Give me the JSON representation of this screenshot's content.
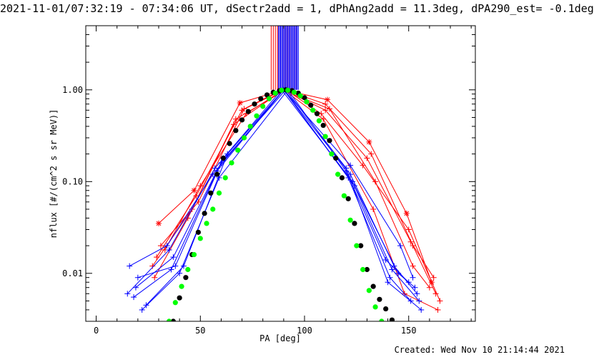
{
  "chart_data": {
    "type": "line",
    "title": "2021-11-01/07:32:19 - 07:34:06 UT, dSectr2add = 1, dPhAng2add = 11.3deg, dPA290_est= -0.1deg",
    "xlabel": "PA [deg]",
    "ylabel": "nflux [#/(cm^2 s sr MeV)]",
    "xlim": [
      -5,
      182
    ],
    "ylim": [
      0.003,
      5
    ],
    "yscale": "log",
    "xticks": [
      0,
      50,
      100,
      150
    ],
    "xtick_labels": [
      "0",
      "50",
      "100",
      "150"
    ],
    "yticks": [
      0.01,
      0.1,
      1.0
    ],
    "ytick_labels": [
      "0.01",
      "0.10",
      "1.00"
    ],
    "grid": false,
    "legend": "none",
    "colors": {
      "red": "#ff0000",
      "blue": "#0000ff",
      "black": "#000000",
      "green": "#00ff00"
    },
    "series": [
      {
        "color": "red",
        "marker": "plus",
        "x": [
          29,
          48,
          70,
          90,
          110,
          132,
          152,
          163
        ],
        "y": [
          0.015,
          0.07,
          0.6,
          1.0,
          0.7,
          0.2,
          0.02,
          0.006
        ]
      },
      {
        "color": "red",
        "marker": "star",
        "x": [
          30,
          47,
          69,
          90,
          111,
          131,
          149,
          161
        ],
        "y": [
          0.035,
          0.08,
          0.72,
          1.0,
          0.78,
          0.27,
          0.045,
          0.008
        ]
      },
      {
        "color": "red",
        "marker": "plus",
        "x": [
          27,
          46,
          67,
          91,
          108,
          128,
          150,
          165
        ],
        "y": [
          0.012,
          0.05,
          0.48,
          1.0,
          0.55,
          0.15,
          0.03,
          0.005
        ]
      },
      {
        "color": "red",
        "marker": "plus",
        "x": [
          31,
          49,
          71,
          89,
          112,
          134,
          152,
          160
        ],
        "y": [
          0.02,
          0.06,
          0.62,
          1.0,
          0.62,
          0.1,
          0.012,
          0.007
        ]
      },
      {
        "color": "red",
        "marker": "plus",
        "x": [
          28,
          44,
          66,
          90,
          109,
          133,
          148,
          164
        ],
        "y": [
          0.009,
          0.04,
          0.42,
          1.0,
          0.48,
          0.05,
          0.006,
          0.004
        ]
      },
      {
        "color": "red",
        "marker": "plus",
        "x": [
          33,
          50,
          72,
          90,
          110,
          130,
          151,
          162
        ],
        "y": [
          0.018,
          0.09,
          0.55,
          1.0,
          0.6,
          0.18,
          0.022,
          0.009
        ]
      },
      {
        "color": "blue",
        "marker": "plus",
        "x": [
          16,
          34,
          56,
          90,
          122,
          143,
          154
        ],
        "y": [
          0.012,
          0.02,
          0.12,
          1.0,
          0.12,
          0.012,
          0.006
        ]
      },
      {
        "color": "blue",
        "marker": "plus",
        "x": [
          18,
          36,
          58,
          90,
          121,
          141,
          151
        ],
        "y": [
          0.0055,
          0.011,
          0.13,
          1.0,
          0.11,
          0.009,
          0.005
        ]
      },
      {
        "color": "blue",
        "marker": "plus",
        "x": [
          20,
          38,
          60,
          91,
          120,
          140,
          156
        ],
        "y": [
          0.009,
          0.012,
          0.16,
          1.0,
          0.14,
          0.008,
          0.004
        ]
      },
      {
        "color": "blue",
        "marker": "plus",
        "x": [
          15,
          35,
          57,
          90,
          124,
          145,
          153
        ],
        "y": [
          0.006,
          0.018,
          0.14,
          1.0,
          0.09,
          0.01,
          0.007
        ]
      },
      {
        "color": "blue",
        "marker": "plus",
        "x": [
          22,
          40,
          59,
          92,
          120,
          139,
          150
        ],
        "y": [
          0.004,
          0.01,
          0.11,
          1.0,
          0.13,
          0.014,
          0.008
        ]
      },
      {
        "color": "blue",
        "marker": "plus",
        "x": [
          19,
          37,
          61,
          89,
          123,
          142,
          155
        ],
        "y": [
          0.007,
          0.015,
          0.18,
          1.0,
          0.1,
          0.011,
          0.005
        ]
      },
      {
        "color": "blue",
        "marker": "plus",
        "x": [
          24,
          42,
          63,
          90,
          122,
          146,
          152
        ],
        "y": [
          0.0045,
          0.012,
          0.2,
          1.0,
          0.15,
          0.02,
          0.009
        ]
      },
      {
        "color": "black",
        "marker": "dot",
        "style": "dots",
        "x": [
          37,
          40,
          43,
          46,
          49,
          52,
          55,
          58,
          61,
          64,
          67,
          70,
          73,
          76,
          79,
          82,
          85,
          88,
          91,
          94,
          97,
          100,
          103,
          106,
          109,
          112,
          115,
          118,
          121,
          124,
          127,
          130,
          133,
          136,
          139,
          142
        ],
        "y": [
          0.003,
          0.0054,
          0.009,
          0.016,
          0.028,
          0.045,
          0.075,
          0.12,
          0.18,
          0.26,
          0.36,
          0.47,
          0.58,
          0.7,
          0.8,
          0.88,
          0.94,
          0.98,
          1.0,
          0.98,
          0.92,
          0.82,
          0.68,
          0.55,
          0.41,
          0.28,
          0.18,
          0.11,
          0.065,
          0.035,
          0.02,
          0.011,
          0.0072,
          0.0052,
          0.0041,
          0.0031
        ]
      },
      {
        "color": "green",
        "marker": "dot",
        "style": "dots",
        "x": [
          35,
          38,
          41,
          44,
          47,
          50,
          53,
          56,
          59,
          62,
          65,
          68,
          71,
          74,
          77,
          80,
          83,
          86,
          89,
          92,
          95,
          98,
          101,
          104,
          107,
          110,
          113,
          116,
          119,
          122,
          125,
          128,
          131,
          134,
          137
        ],
        "y": [
          0.003,
          0.0048,
          0.0072,
          0.011,
          0.016,
          0.024,
          0.035,
          0.05,
          0.075,
          0.11,
          0.16,
          0.22,
          0.3,
          0.4,
          0.52,
          0.66,
          0.8,
          0.92,
          0.99,
          0.99,
          0.94,
          0.86,
          0.74,
          0.6,
          0.46,
          0.31,
          0.2,
          0.12,
          0.07,
          0.038,
          0.02,
          0.011,
          0.0065,
          0.0043,
          0.003
        ]
      }
    ],
    "vertical_lines": [
      {
        "color": "red",
        "x": [
          84,
          85,
          86,
          87,
          88,
          89,
          90,
          91,
          92,
          93,
          94,
          95,
          96
        ]
      },
      {
        "color": "blue",
        "x": [
          87.5,
          88,
          88.5,
          89,
          89.5,
          90,
          90.5,
          91,
          91.5,
          92,
          92.5,
          93,
          93.5,
          94,
          94.5,
          95,
          95.5,
          96,
          96.5,
          97
        ]
      }
    ]
  },
  "footer": {
    "created": "Created: Wed Nov 10 21:14:44 2021"
  }
}
